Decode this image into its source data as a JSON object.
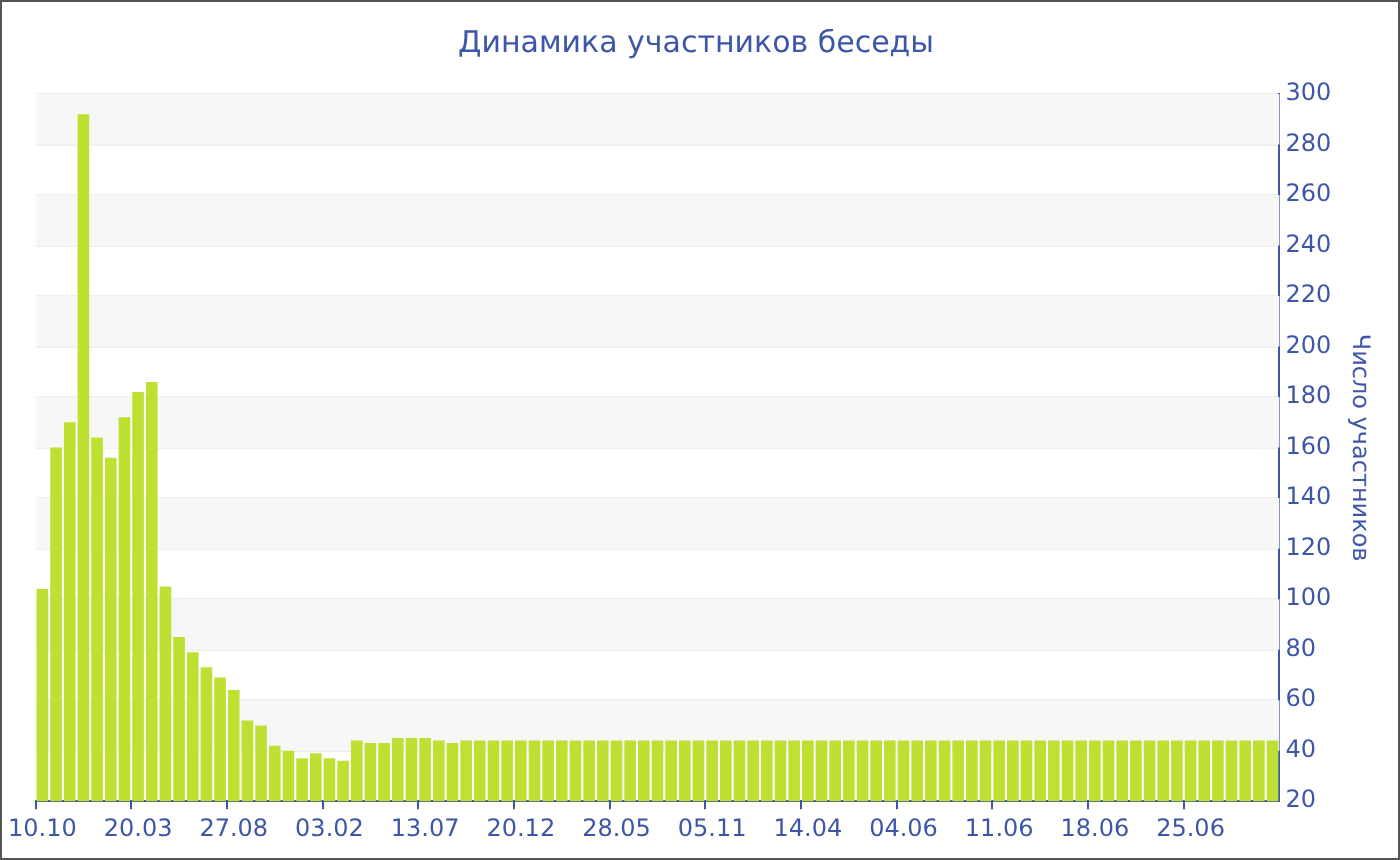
{
  "chart_data": {
    "type": "bar",
    "title": "Динамика участников беседы",
    "ylabel": "Число участников",
    "categories": [
      "10.10",
      null,
      null,
      null,
      null,
      null,
      null,
      "20.03",
      null,
      null,
      null,
      null,
      null,
      null,
      "27.08",
      null,
      null,
      null,
      null,
      null,
      null,
      "03.02",
      null,
      null,
      null,
      null,
      null,
      null,
      "13.07",
      null,
      null,
      null,
      null,
      null,
      null,
      "20.12",
      null,
      null,
      null,
      null,
      null,
      null,
      "28.05",
      null,
      null,
      null,
      null,
      null,
      null,
      "05.11",
      null,
      null,
      null,
      null,
      null,
      null,
      "14.04",
      null,
      null,
      null,
      null,
      null,
      null,
      "04.06",
      null,
      null,
      null,
      null,
      null,
      null,
      "11.06",
      null,
      null,
      null,
      null,
      null,
      null,
      "18.06",
      null,
      null,
      null,
      null,
      null,
      null,
      "25.06",
      null,
      null,
      null,
      null,
      null,
      null
    ],
    "values": [
      104,
      160,
      170,
      292,
      164,
      156,
      172,
      182,
      186,
      105,
      85,
      79,
      73,
      69,
      64,
      52,
      50,
      42,
      40,
      37,
      39,
      37,
      36,
      44,
      43,
      43,
      45,
      45,
      45,
      44,
      43,
      44,
      44,
      44,
      44,
      44,
      44,
      44,
      44,
      44,
      44,
      44,
      44,
      44,
      44,
      44,
      44,
      44,
      44,
      44,
      44,
      44,
      44,
      44,
      44,
      44,
      44,
      44,
      44,
      44,
      44,
      44,
      44,
      44,
      44,
      44,
      44,
      44,
      44,
      44,
      44,
      44,
      44,
      44,
      44,
      44,
      44,
      44,
      44,
      44,
      44,
      44,
      44,
      44,
      44,
      44,
      44,
      44,
      44,
      44,
      44
    ],
    "color": "#bde032",
    "ylim": [
      20,
      300
    ],
    "yticks": [
      20,
      40,
      60,
      80,
      100,
      120,
      140,
      160,
      180,
      200,
      220,
      240,
      260,
      280,
      300
    ],
    "grid": true,
    "legend": false
  }
}
